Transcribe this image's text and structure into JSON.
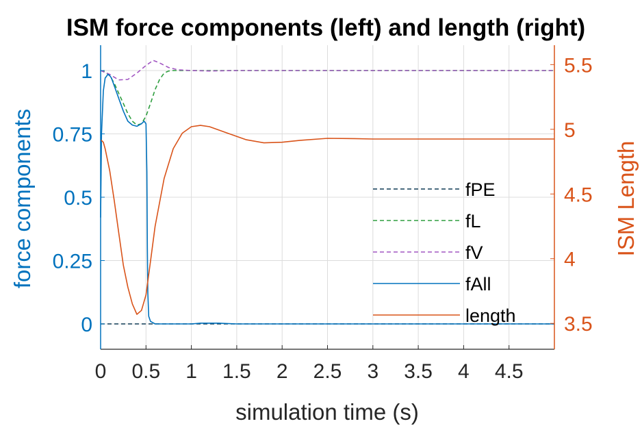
{
  "chart_data": {
    "type": "line",
    "title": "ISM force components (left) and length (right)",
    "xlabel": "simulation time (s)",
    "ylabel_left": "force components",
    "ylabel_right": "ISM Length",
    "xlim": [
      0,
      5
    ],
    "ylim_left": [
      -0.1,
      1.1
    ],
    "ylim_right": [
      3.3,
      5.65
    ],
    "x_ticks": [
      "0",
      "0.5",
      "1",
      "1.5",
      "2",
      "2.5",
      "3",
      "3.5",
      "4",
      "4.5"
    ],
    "y_ticks_left": [
      "0",
      "0.25",
      "0.5",
      "0.75",
      "1"
    ],
    "y_ticks_right": [
      "3.5",
      "4",
      "4.5",
      "5",
      "5.5"
    ],
    "grid": true,
    "legend_position": "bottom-right",
    "colors": {
      "left_axis": "#0072BD",
      "right_axis": "#D95319"
    },
    "series": [
      {
        "name": "fPE",
        "axis": "left",
        "color": "#0E3A55",
        "dash": "dashed",
        "x": [
          0,
          0.5,
          1,
          2,
          3,
          4,
          5
        ],
        "y": [
          0,
          0,
          0,
          0,
          0,
          0,
          0
        ]
      },
      {
        "name": "fL",
        "axis": "left",
        "color": "#2E9E3F",
        "dash": "dashed",
        "x": [
          0,
          0.05,
          0.1,
          0.15,
          0.2,
          0.25,
          0.3,
          0.35,
          0.4,
          0.45,
          0.5,
          0.55,
          0.6,
          0.65,
          0.7,
          0.75,
          0.8,
          0.9,
          1.0,
          1.2,
          1.5,
          2,
          3,
          4,
          5
        ],
        "y": [
          1.0,
          0.995,
          0.98,
          0.95,
          0.91,
          0.87,
          0.83,
          0.8,
          0.785,
          0.79,
          0.82,
          0.87,
          0.925,
          0.965,
          0.99,
          0.998,
          1.0,
          1.0,
          1.0,
          1.0,
          1.0,
          1.0,
          1.0,
          1.0,
          1.0
        ]
      },
      {
        "name": "fV",
        "axis": "left",
        "color": "#A155C2",
        "dash": "dashed",
        "x": [
          0,
          0.1,
          0.2,
          0.3,
          0.4,
          0.5,
          0.58,
          0.65,
          0.75,
          0.85,
          1.0,
          1.2,
          1.5,
          2,
          3,
          4,
          5
        ],
        "y": [
          1.0,
          0.985,
          0.963,
          0.965,
          0.99,
          1.02,
          1.04,
          1.03,
          1.012,
          1.003,
          1.0,
          0.998,
          1.0,
          1.0,
          1.0,
          1.0,
          1.0
        ]
      },
      {
        "name": "fAll",
        "axis": "left",
        "color": "#0072BD",
        "dash": "solid",
        "x": [
          0,
          0.01,
          0.03,
          0.05,
          0.08,
          0.1,
          0.12,
          0.15,
          0.2,
          0.25,
          0.3,
          0.35,
          0.4,
          0.45,
          0.48,
          0.5,
          0.51,
          0.515,
          0.52,
          0.53,
          0.55,
          0.6,
          0.7,
          0.8,
          1.0,
          1.1,
          1.3,
          1.5,
          2,
          3,
          4,
          5
        ],
        "y": [
          0.42,
          0.75,
          0.92,
          0.97,
          0.985,
          0.98,
          0.97,
          0.94,
          0.89,
          0.84,
          0.8,
          0.785,
          0.78,
          0.79,
          0.8,
          0.79,
          0.6,
          0.3,
          0.12,
          0.03,
          0.01,
          0.0,
          0.0,
          0.0,
          0.0,
          0.003,
          0.003,
          0.0,
          0.0,
          0.0,
          0.0,
          0.0
        ]
      },
      {
        "name": "length",
        "axis": "right",
        "color": "#D95319",
        "dash": "solid",
        "x": [
          0,
          0.03,
          0.05,
          0.1,
          0.15,
          0.2,
          0.25,
          0.3,
          0.35,
          0.4,
          0.45,
          0.5,
          0.55,
          0.6,
          0.7,
          0.8,
          0.9,
          1.0,
          1.1,
          1.2,
          1.4,
          1.6,
          1.8,
          2.0,
          2.2,
          2.5,
          2.8,
          3.0,
          3.5,
          4.0,
          4.5,
          5.0
        ],
        "y": [
          4.92,
          4.9,
          4.85,
          4.68,
          4.45,
          4.2,
          3.95,
          3.78,
          3.65,
          3.57,
          3.6,
          3.72,
          3.98,
          4.25,
          4.62,
          4.85,
          4.97,
          5.02,
          5.03,
          5.02,
          4.97,
          4.92,
          4.895,
          4.9,
          4.915,
          4.93,
          4.928,
          4.925,
          4.925,
          4.925,
          4.925,
          4.925
        ]
      }
    ]
  }
}
